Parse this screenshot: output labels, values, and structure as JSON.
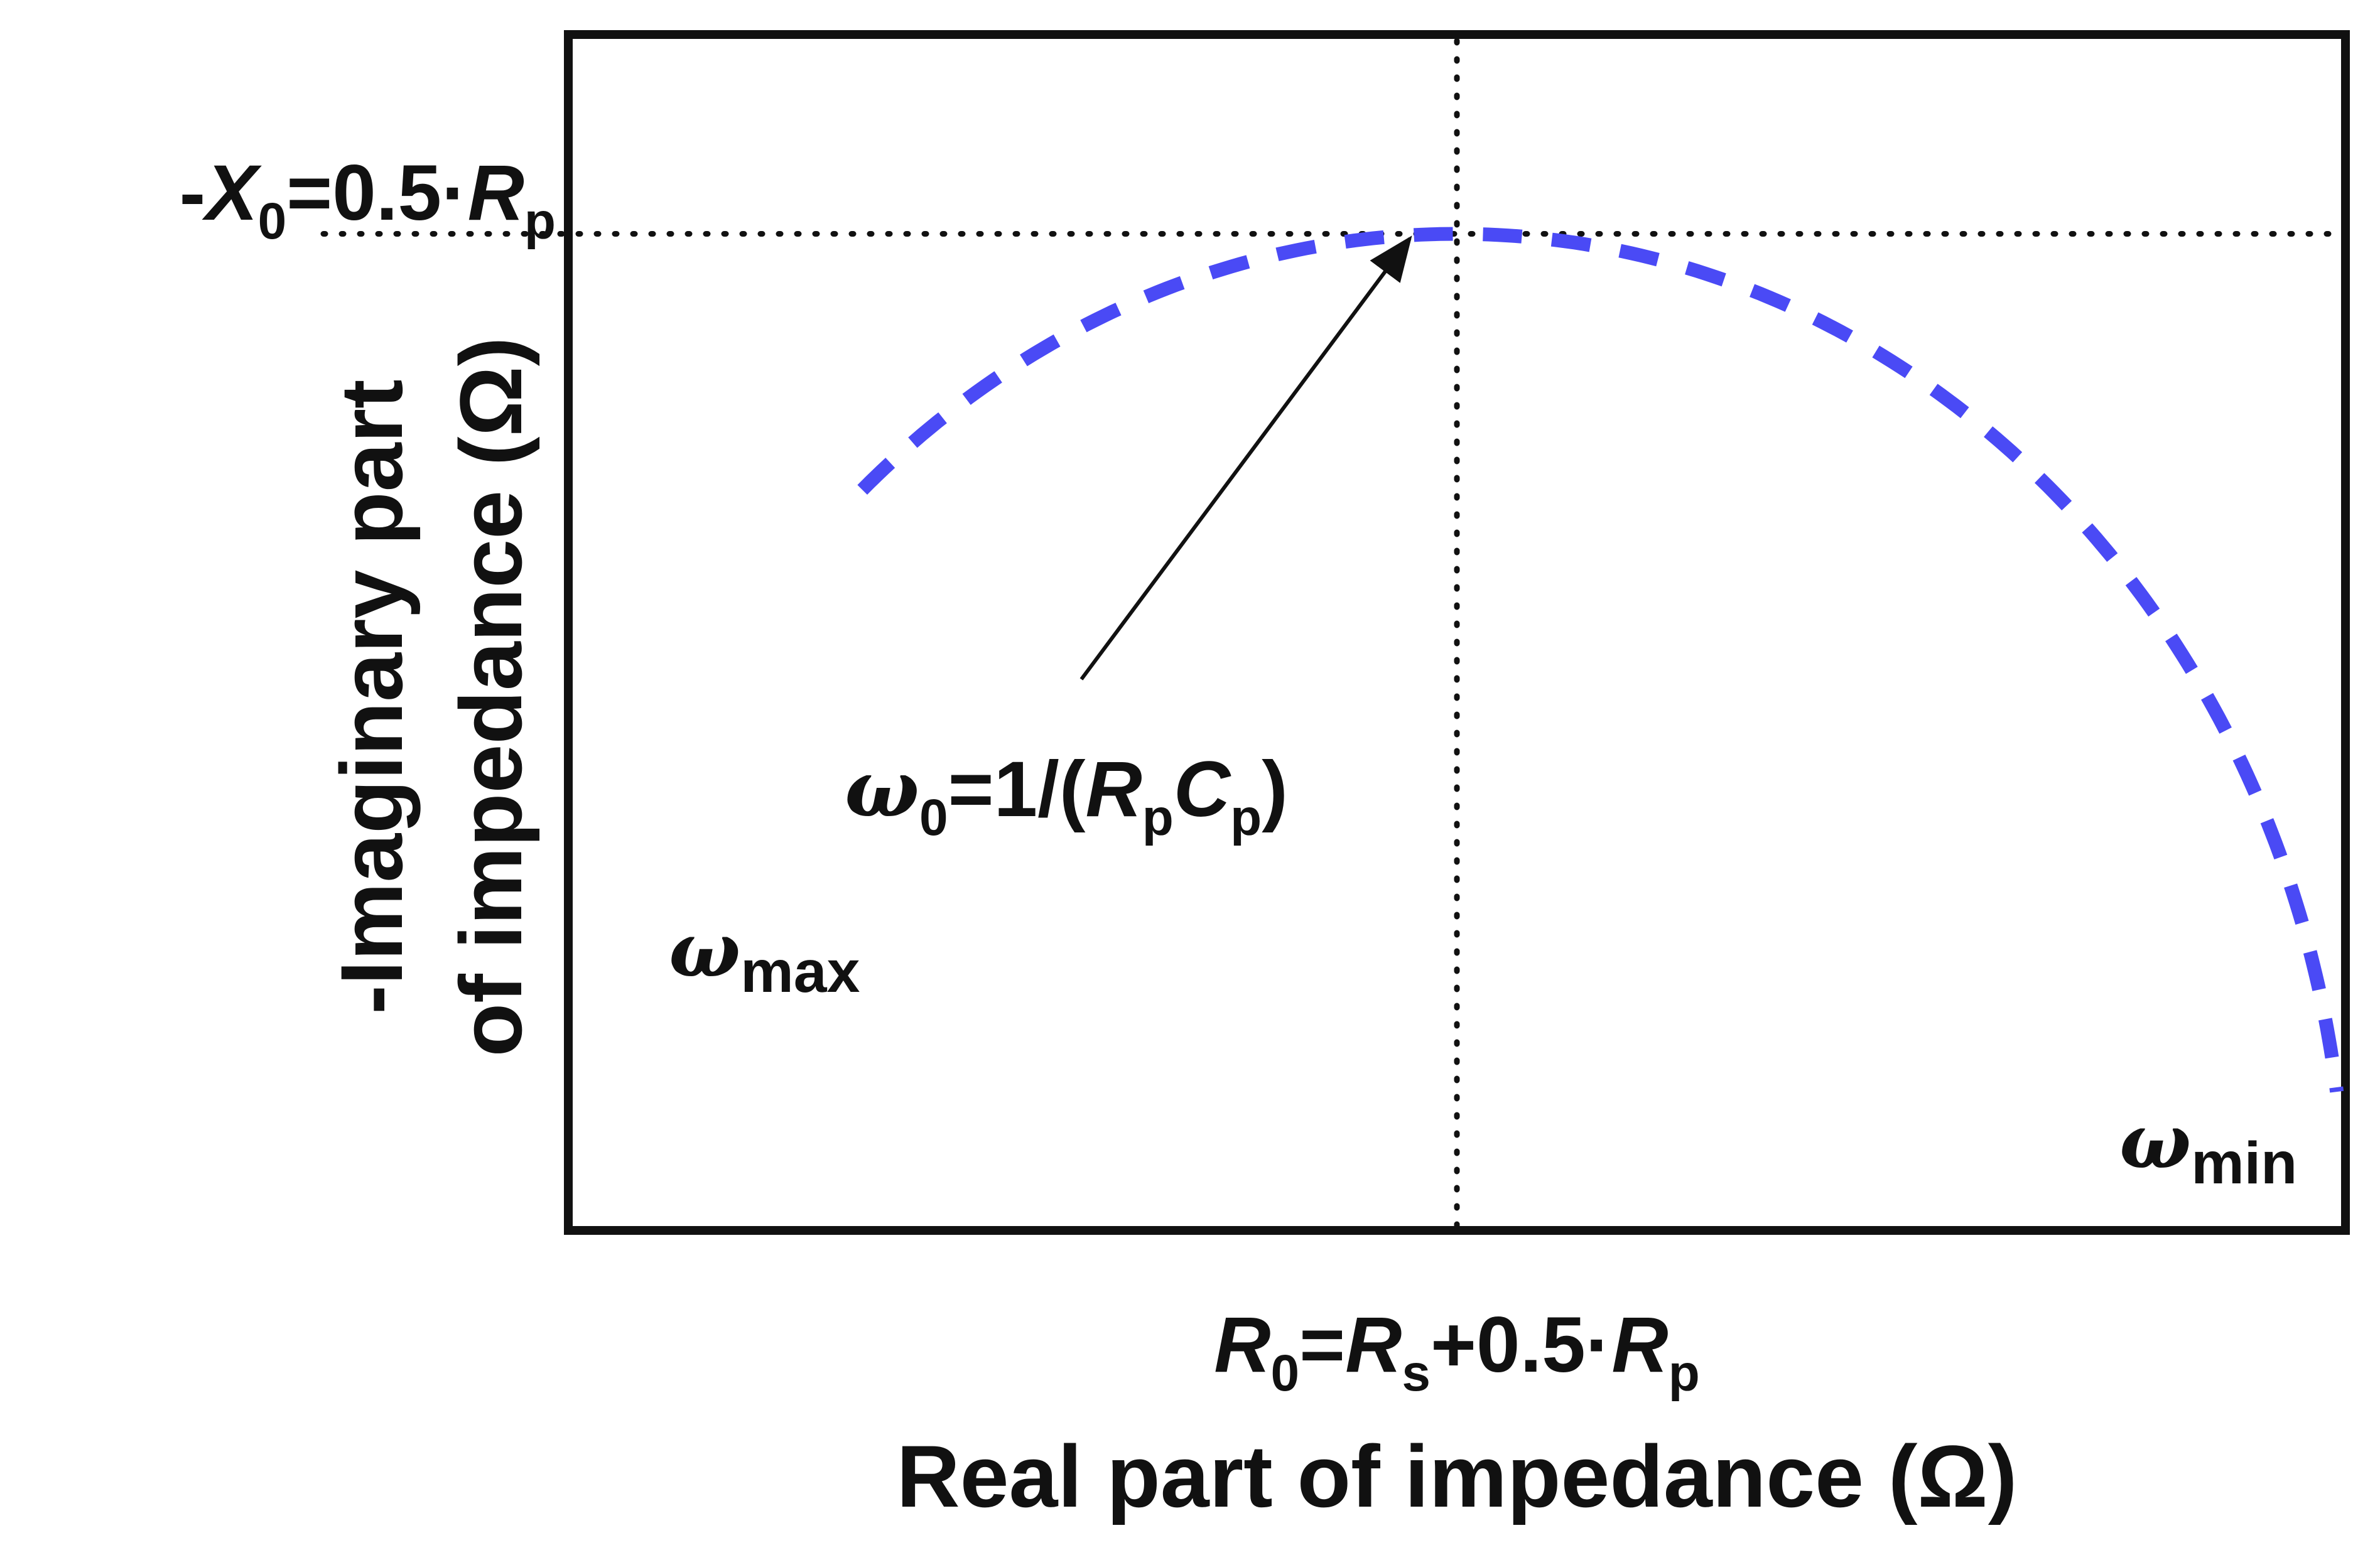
{
  "chart_data": {
    "type": "line",
    "title": "",
    "xlabel": "Real part of impedance (Ω)",
    "ylabel_line1": "-Imaginary part",
    "ylabel_line2": "of impedance (Ω)",
    "x_tick": {
      "R": "R",
      "sub0": "0",
      "eq": "=",
      "Rs": "R",
      "subs": "s",
      "plus": "+0.5·",
      "Rp": "R",
      "subp": "p"
    },
    "y_tick": {
      "minus": "-",
      "X": "X",
      "sub0": "0",
      "eq": "=0.5·",
      "R": "R",
      "subp": "p"
    },
    "annotation": {
      "omega": "ω",
      "sub0": "0",
      "eq": "=1/(",
      "R": "R",
      "subp1": "p",
      "C": "C",
      "subp2": "p",
      "close": ")"
    },
    "omega_max": {
      "omega": "ω",
      "sub": "max"
    },
    "omega_min": {
      "omega": "ω",
      "sub": "min"
    },
    "xlim": [
      0,
      1
    ],
    "ylim": [
      0,
      0.6
    ],
    "center_x": 0.5,
    "peak_y": 0.5,
    "arc_start_angle_deg": 132,
    "arc_end_angle_deg": 8,
    "reference_x": 0.5,
    "reference_y": 0.5,
    "grid": false,
    "series": [
      {
        "style": "dashed",
        "color": "#4a4af5"
      }
    ],
    "colors": {
      "arc": "#4a4af5",
      "frame": "#111111",
      "guide": "#111111"
    }
  }
}
